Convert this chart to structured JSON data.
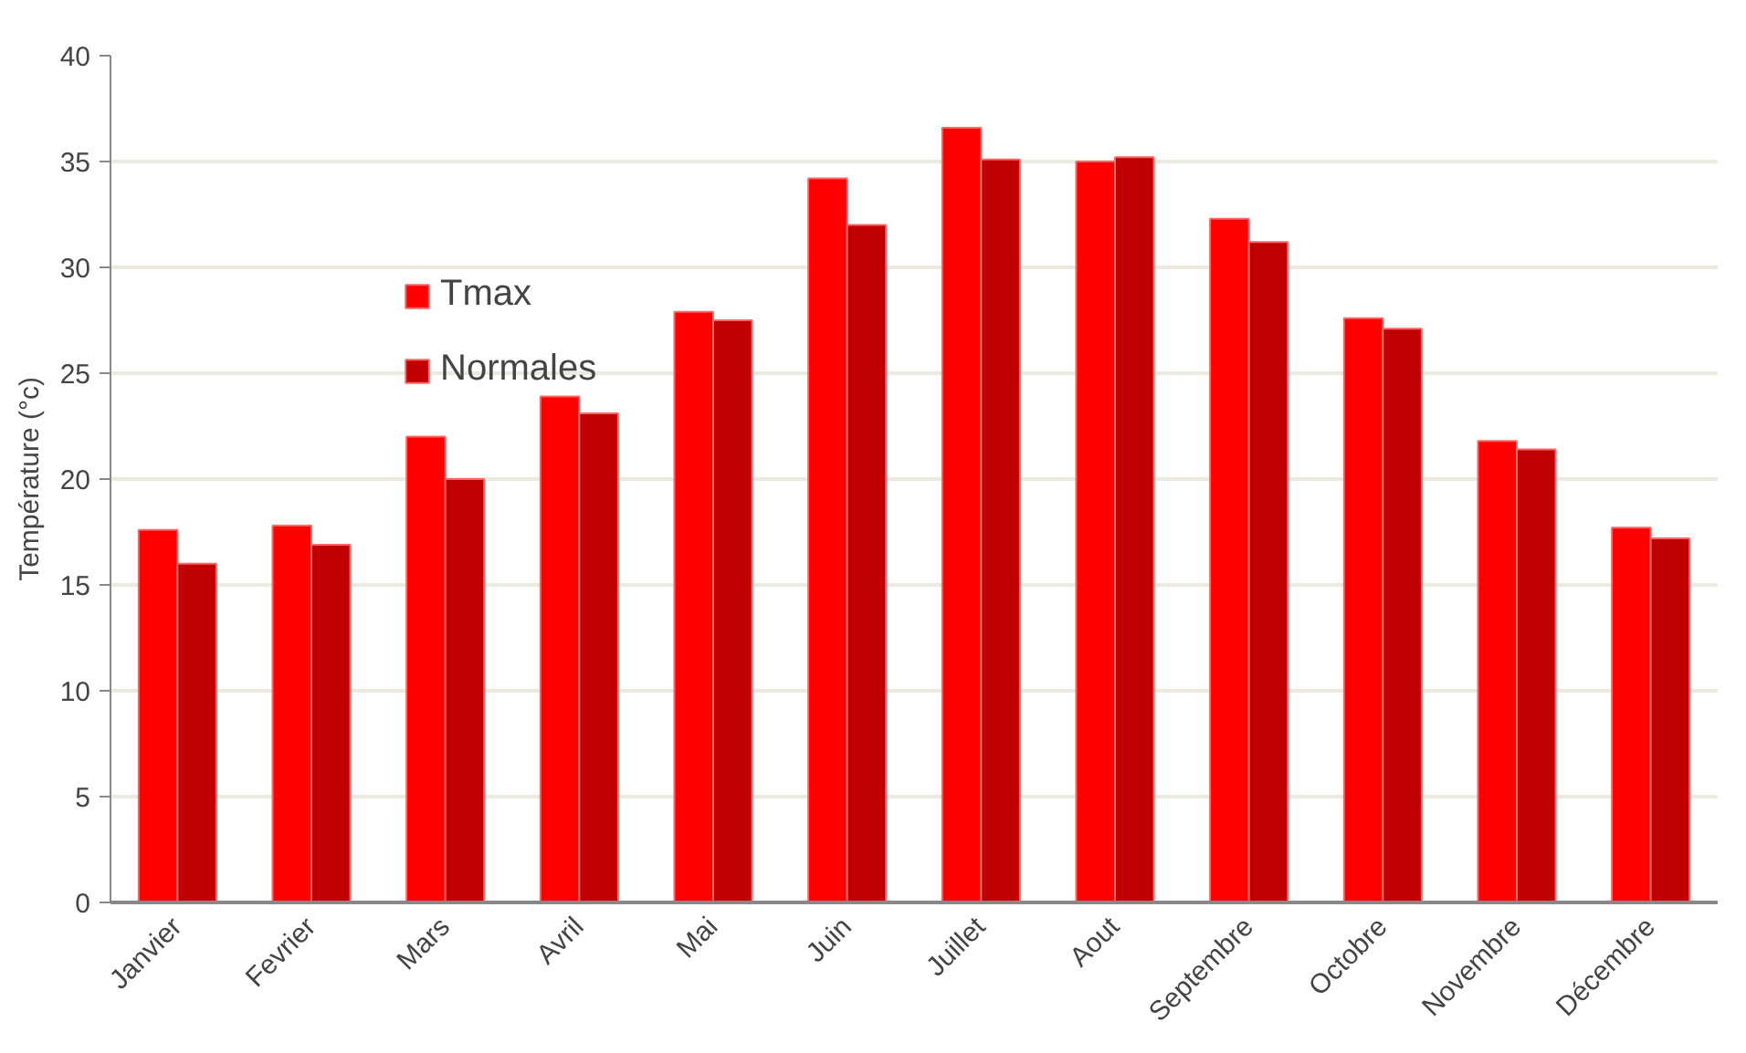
{
  "chart_data": {
    "type": "bar",
    "ylabel": "Température (°c)",
    "categories": [
      "Janvier",
      "Fevrier",
      "Mars",
      "Avril",
      "Mai",
      "Juin",
      "Juillet",
      "Aout",
      "Septembre",
      "Octobre",
      "Novembre",
      "Décembre"
    ],
    "series": [
      {
        "name": "Tmax",
        "color": "#ff0000",
        "values": [
          17.6,
          17.8,
          22.0,
          23.9,
          27.9,
          34.2,
          36.6,
          35.0,
          32.3,
          27.6,
          21.8,
          17.7
        ]
      },
      {
        "name": "Normales",
        "color": "#c00000",
        "values": [
          16.0,
          16.9,
          20.0,
          23.1,
          27.5,
          32.0,
          35.1,
          35.2,
          31.2,
          27.1,
          21.4,
          17.2
        ]
      }
    ],
    "ylim": [
      0,
      40
    ],
    "yticks": [
      0,
      5,
      10,
      15,
      20,
      25,
      30,
      35,
      40
    ],
    "grid": "y",
    "legend": "top left"
  }
}
